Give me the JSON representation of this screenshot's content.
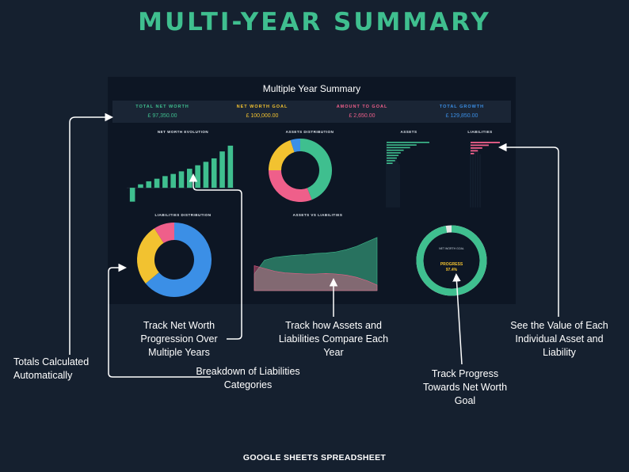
{
  "title": "MULTI-YEAR SUMMARY",
  "dashboard": {
    "title": "Multiple Year Summary",
    "kpis": [
      {
        "label": "TOTAL NET WORTH",
        "value": "£ 97,350.00",
        "color": "#3fbf8f"
      },
      {
        "label": "NET WORTH GOAL",
        "value": "£ 100,000.00",
        "color": "#f2c230"
      },
      {
        "label": "AMOUNT TO GOAL",
        "value": "£ 2,650.00",
        "color": "#ef5f8a"
      },
      {
        "label": "TOTAL GROWTH",
        "value": "£ 129,850.00",
        "color": "#3b8fe6"
      }
    ],
    "panels": {
      "net_worth_evolution": "NET WORTH EVOLUTION",
      "assets_distribution": "ASSETS DISTRIBUTION",
      "assets": "ASSETS",
      "liabilities": "LIABILITIES",
      "liabilities_distribution": "LIABILITIES DISTRIBUTION",
      "assets_vs_liabilities": "ASSETS VS LIABILITIES"
    },
    "progress": {
      "caption": "NET WORTH GOAL",
      "label": "PROGRESS",
      "value": "97.4%",
      "fraction": 0.974
    }
  },
  "chart_data": [
    {
      "type": "bar",
      "title": "NET WORTH EVOLUTION",
      "values": [
        -32000,
        8000,
        15000,
        21000,
        27000,
        32000,
        38000,
        44000,
        52000,
        60000,
        68000,
        84000,
        97350
      ],
      "ylim": [
        -40000,
        110000
      ]
    },
    {
      "type": "pie",
      "title": "ASSETS DISTRIBUTION",
      "values": [
        0.44,
        0.31,
        0.2,
        0.05
      ],
      "colors": [
        "#3fbf8f",
        "#ef5f8a",
        "#f2c230",
        "#3b8fe6"
      ]
    },
    {
      "type": "bar",
      "title": "ASSETS",
      "orientation": "horizontal",
      "values": [
        100,
        70,
        55,
        40,
        33,
        28,
        24,
        20,
        14
      ]
    },
    {
      "type": "bar",
      "title": "LIABILITIES",
      "orientation": "horizontal",
      "values": [
        100,
        62,
        40,
        25,
        12
      ]
    },
    {
      "type": "pie",
      "title": "LIABILITIES DISTRIBUTION",
      "values": [
        0.64,
        0.27,
        0.09
      ],
      "colors": [
        "#3b8fe6",
        "#f2c230",
        "#ef5f8a"
      ]
    },
    {
      "type": "area",
      "title": "ASSETS VS LIABILITIES",
      "series": [
        {
          "values": [
            30,
            55,
            60,
            62,
            64,
            65,
            67,
            68,
            70,
            74,
            80,
            88,
            96
          ],
          "color": "#3fbf8f"
        },
        {
          "values": [
            45,
            40,
            35,
            32,
            31,
            30,
            30,
            31,
            30,
            28,
            24,
            18,
            10
          ],
          "color": "#ef5f8a"
        }
      ]
    }
  ],
  "callouts": {
    "totals": "Totals Calculated Automatically",
    "net_worth": "Track Net Worth Progression Over Multiple Years",
    "liabilities": "Breakdown of Liabilities Categories",
    "compare": "Track how Assets and Liabilities Compare Each Year",
    "progress": "Track Progress Towards Net Worth Goal",
    "values": "See the Value of Each Individual Asset and Liability"
  },
  "footer": "GOOGLE SHEETS SPREADSHEET"
}
